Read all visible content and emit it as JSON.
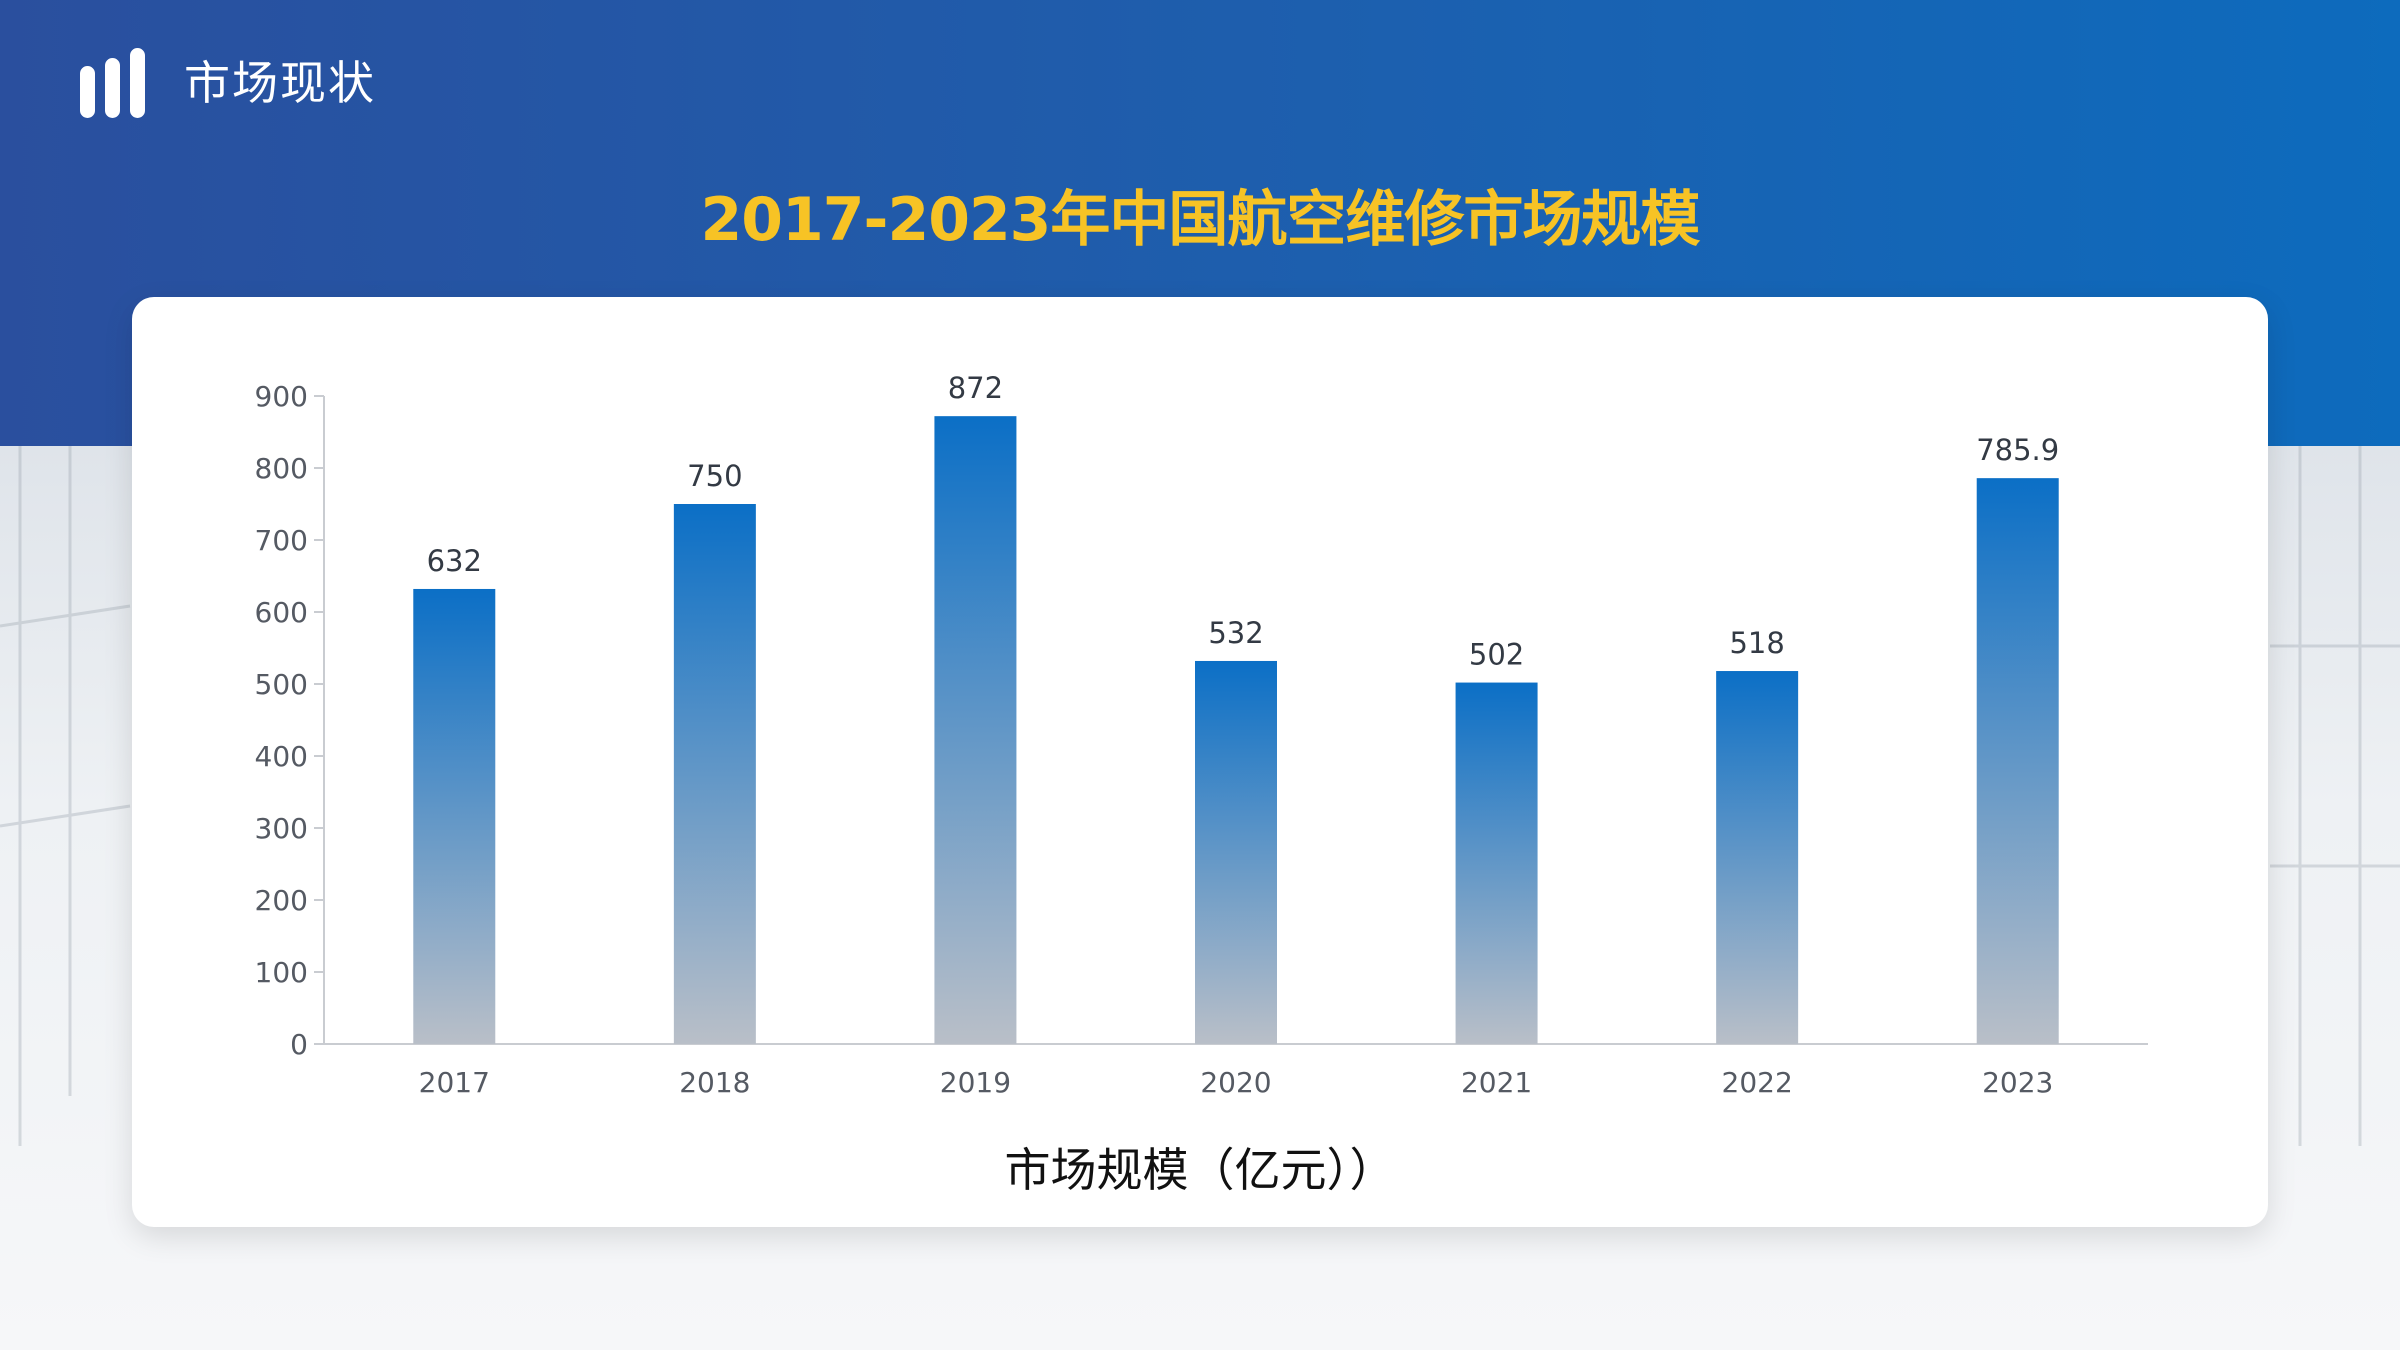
{
  "header": {
    "section_title": "市场现状",
    "logo_icon": "bar-logo-icon"
  },
  "colors": {
    "header_band": "#2350a0",
    "title_accent": "#f7c325",
    "bar_top": "#0b6fc6",
    "bar_bottom": "#b9bfc8"
  },
  "chart_data": {
    "type": "bar",
    "title": "2017-2023年中国航空维修市场规模",
    "xlabel": "市场规模（亿元））",
    "ylabel": "",
    "categories": [
      "2017",
      "2018",
      "2019",
      "2020",
      "2021",
      "2022",
      "2023"
    ],
    "values": [
      632,
      750,
      872,
      532,
      502,
      518,
      785.9
    ],
    "data_labels": [
      "632",
      "750",
      "872",
      "532",
      "502",
      "518",
      "785.9"
    ],
    "ylim": [
      0,
      900
    ],
    "yticks": [
      0,
      100,
      200,
      300,
      400,
      500,
      600,
      700,
      800,
      900
    ],
    "grid": false,
    "legend": "none"
  }
}
